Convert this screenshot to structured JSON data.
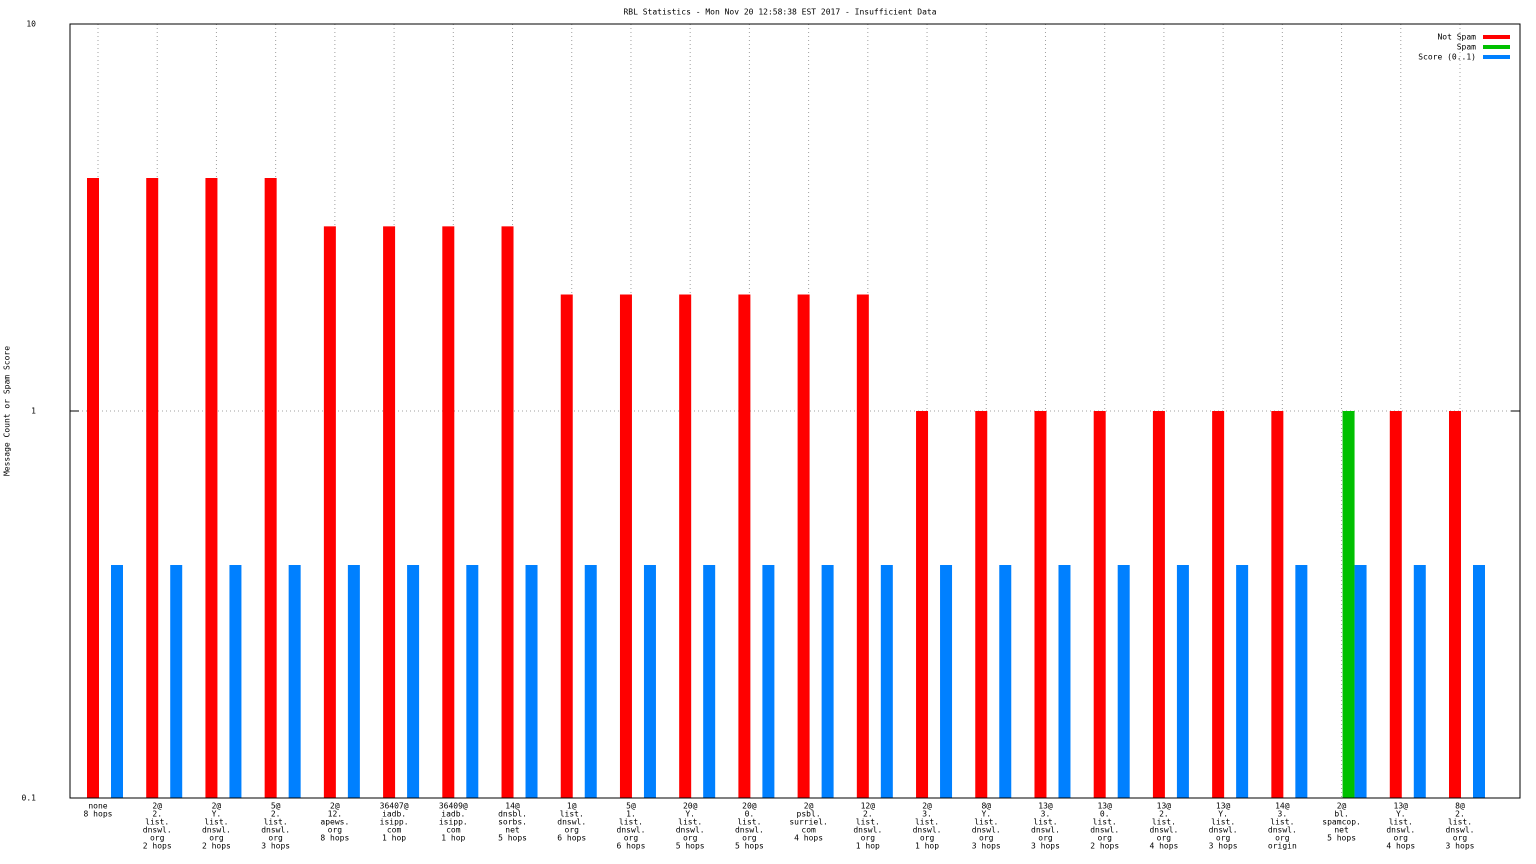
{
  "chart_data": {
    "type": "bar",
    "title": "RBL Statistics - Mon Nov 20 12:58:38 EST 2017 - Insufficient Data",
    "y_label": "Message Count or Spam Score",
    "log_scale": true,
    "grid": true,
    "legend_position": "top-right",
    "ylim": [
      0.1,
      10
    ],
    "yticks": [
      0.1,
      1,
      10
    ],
    "categories": [
      [
        "none",
        "8 hops"
      ],
      [
        "2@",
        "2.",
        "list.",
        "dnswl.",
        "org",
        "2 hops"
      ],
      [
        "2@",
        "Y.",
        "list.",
        "dnswl.",
        "org",
        "2 hops"
      ],
      [
        "5@",
        "2.",
        "list.",
        "dnswl.",
        "org",
        "3 hops"
      ],
      [
        "2@",
        "12.",
        "apews.",
        "org",
        "8 hops"
      ],
      [
        "36407@",
        "iadb.",
        "isipp.",
        "com",
        "1 hop"
      ],
      [
        "36409@",
        "iadb.",
        "isipp.",
        "com",
        "1 hop"
      ],
      [
        "14@",
        "dnsbl.",
        "sorbs.",
        "net",
        "5 hops"
      ],
      [
        "1@",
        "list.",
        "dnswl.",
        "org",
        "6 hops"
      ],
      [
        "5@",
        "1.",
        "list.",
        "dnswl.",
        "org",
        "6 hops"
      ],
      [
        "20@",
        "Y.",
        "list.",
        "dnswl.",
        "org",
        "5 hops"
      ],
      [
        "20@",
        "0.",
        "list.",
        "dnswl.",
        "org",
        "5 hops"
      ],
      [
        "2@",
        "psbl.",
        "surriel.",
        "com",
        "4 hops"
      ],
      [
        "12@",
        "2.",
        "list.",
        "dnswl.",
        "org",
        "1 hop"
      ],
      [
        "2@",
        "3.",
        "list.",
        "dnswl.",
        "org",
        "1 hop"
      ],
      [
        "8@",
        "Y.",
        "list.",
        "dnswl.",
        "org",
        "3 hops"
      ],
      [
        "13@",
        "3.",
        "list.",
        "dnswl.",
        "org",
        "3 hops"
      ],
      [
        "13@",
        "0.",
        "list.",
        "dnswl.",
        "org",
        "2 hops"
      ],
      [
        "13@",
        "2.",
        "list.",
        "dnswl.",
        "org",
        "4 hops"
      ],
      [
        "13@",
        "Y.",
        "list.",
        "dnswl.",
        "org",
        "3 hops"
      ],
      [
        "14@",
        "3.",
        "list.",
        "dnswl.",
        "org",
        "origin"
      ],
      [
        "2@",
        "bl.",
        "spamcop.",
        "net",
        "5 hops"
      ],
      [
        "13@",
        "Y.",
        "list.",
        "dnswl.",
        "org",
        "4 hops"
      ],
      [
        "8@",
        "2.",
        "list.",
        "dnswl.",
        "org",
        "3 hops"
      ]
    ],
    "series": [
      {
        "name": "Not Spam",
        "color": "#ff0000",
        "values": [
          4,
          4,
          4,
          4,
          3,
          3,
          3,
          3,
          2,
          2,
          2,
          2,
          2,
          2,
          1,
          1,
          1,
          1,
          1,
          1,
          1,
          null,
          1,
          1
        ]
      },
      {
        "name": "Spam",
        "color": "#00c000",
        "values": [
          null,
          null,
          null,
          null,
          null,
          null,
          null,
          null,
          null,
          null,
          null,
          null,
          null,
          null,
          null,
          null,
          null,
          null,
          null,
          null,
          null,
          1,
          null,
          null
        ]
      },
      {
        "name": "Score (0..1)",
        "color": "#0080ff",
        "values": [
          0.4,
          0.4,
          0.4,
          0.4,
          0.4,
          0.4,
          0.4,
          0.4,
          0.4,
          0.4,
          0.4,
          0.4,
          0.4,
          0.4,
          0.4,
          0.4,
          0.4,
          0.4,
          0.4,
          0.4,
          0.4,
          0.4,
          0.4,
          0.4
        ]
      }
    ]
  }
}
